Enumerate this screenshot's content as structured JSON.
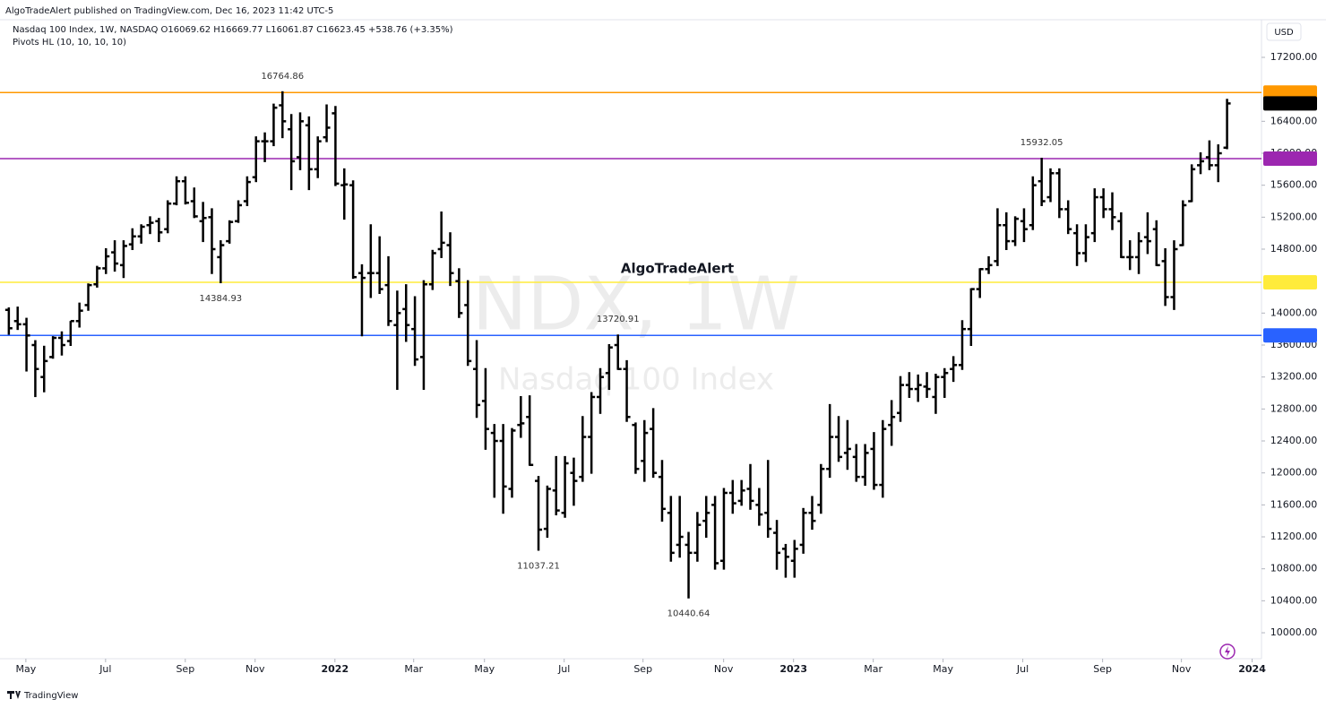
{
  "chart_data": {
    "type": "ohlc",
    "publisher": "AlgoTradeAlert published on TradingView.com, Dec 16, 2023 11:42 UTC-5",
    "legend": "Nasdaq 100 Index, 1W, NASDAQ  O16069.62  H16669.77  L16061.87  C16623.45  +538.76 (+3.35%)",
    "indicator": "Pivots HL (10, 10, 10, 10)",
    "currency": "USD",
    "watermark": "NDX, 1W",
    "watermark_name": "Nasdaq 100 Index",
    "annotation": "AlgoTradeAlert",
    "brand": "TradingView",
    "color": "#000000",
    "ylim": [
      9675,
      17671
    ],
    "xlim": [
      -1,
      141.9
    ],
    "yticks": [
      {
        "value": 17200,
        "label": "17200.00"
      },
      {
        "value": 16400,
        "label": "16400.00"
      },
      {
        "value": 16000,
        "label": "16000.00"
      },
      {
        "value": 15600,
        "label": "15600.00"
      },
      {
        "value": 15200,
        "label": "15200.00"
      },
      {
        "value": 14800,
        "label": "14800.00"
      },
      {
        "value": 14000,
        "label": "14000.00"
      },
      {
        "value": 13600,
        "label": "13600.00"
      },
      {
        "value": 13200,
        "label": "13200.00"
      },
      {
        "value": 12800,
        "label": "12800.00"
      },
      {
        "value": 12400,
        "label": "12400.00"
      },
      {
        "value": 12000,
        "label": "12000.00"
      },
      {
        "value": 11600,
        "label": "11600.00"
      },
      {
        "value": 11200,
        "label": "11200.00"
      },
      {
        "value": 10800,
        "label": "10800.00"
      },
      {
        "value": 10400,
        "label": "10400.00"
      },
      {
        "value": 10000,
        "label": "10000.00"
      }
    ],
    "xticks": [
      {
        "value": 1.93,
        "label": "May"
      },
      {
        "value": 10.96,
        "label": "Jul"
      },
      {
        "value": 19.99,
        "label": "Sep"
      },
      {
        "value": 27.9,
        "label": "Nov"
      },
      {
        "value": 36.94,
        "label": "2022"
      },
      {
        "value": 45.86,
        "label": "Mar"
      },
      {
        "value": 53.88,
        "label": "May"
      },
      {
        "value": 62.91,
        "label": "Jul"
      },
      {
        "value": 71.84,
        "label": "Sep"
      },
      {
        "value": 80.97,
        "label": "Nov"
      },
      {
        "value": 88.89,
        "label": "2023"
      },
      {
        "value": 97.92,
        "label": "Mar"
      },
      {
        "value": 105.83,
        "label": "May"
      },
      {
        "value": 114.86,
        "label": "Jul"
      },
      {
        "value": 123.9,
        "label": "Sep"
      },
      {
        "value": 132.83,
        "label": "Nov"
      },
      {
        "value": 140.84,
        "label": "2024"
      }
    ],
    "levels": [
      {
        "value": 16760.33,
        "color": "#ff9800",
        "label_color": "#000000"
      },
      {
        "value": 15932.05,
        "color": "#9c27b0",
        "label_color": "#ffffff"
      },
      {
        "value": 14384.93,
        "color": "#ffeb3b",
        "label_color": "#000000"
      },
      {
        "value": 13720.91,
        "color": "#2962ff",
        "label_color": "#ffffff"
      }
    ],
    "pivot_labels": [
      16764.86,
      14384.93,
      13720.91,
      11037.21,
      10440.64,
      15932.05
    ],
    "ohlc": [
      [
        14040,
        14060,
        13740,
        13810
      ],
      [
        13900,
        14070,
        13800,
        13860
      ],
      [
        13860,
        13930,
        13280,
        13720
      ],
      [
        13600,
        13650,
        12960,
        13300
      ],
      [
        13200,
        13580,
        13020,
        13400
      ],
      [
        13450,
        13700,
        13440,
        13690
      ],
      [
        13690,
        13760,
        13480,
        13600
      ],
      [
        13650,
        13890,
        13600,
        13900
      ],
      [
        13900,
        14120,
        13830,
        14030
      ],
      [
        14100,
        14360,
        14040,
        14350
      ],
      [
        14360,
        14580,
        14330,
        14560
      ],
      [
        14560,
        14800,
        14500,
        14710
      ],
      [
        14760,
        14900,
        14530,
        14620
      ],
      [
        14600,
        14900,
        14450,
        14840
      ],
      [
        14860,
        15050,
        14800,
        14960
      ],
      [
        14960,
        15100,
        14880,
        15080
      ],
      [
        15100,
        15200,
        15000,
        15130
      ],
      [
        15150,
        15180,
        14900,
        15010
      ],
      [
        15050,
        15400,
        15010,
        15370
      ],
      [
        15370,
        15700,
        15360,
        15650
      ],
      [
        15650,
        15700,
        15370,
        15380
      ],
      [
        15400,
        15560,
        15200,
        15210
      ],
      [
        15150,
        15380,
        14900,
        15190
      ],
      [
        15200,
        15300,
        14500,
        14800
      ],
      [
        14700,
        14900,
        14384.93,
        14850
      ],
      [
        14900,
        15150,
        14880,
        15140
      ],
      [
        15150,
        15400,
        15140,
        15350
      ],
      [
        15400,
        15700,
        15350,
        15640
      ],
      [
        15700,
        16200,
        15650,
        16150
      ],
      [
        16150,
        16250,
        15900,
        16150
      ],
      [
        16150,
        16610,
        16100,
        16570
      ],
      [
        16600,
        16764.86,
        16200,
        16400
      ],
      [
        16300,
        16480,
        15550,
        15900
      ],
      [
        15950,
        16500,
        15800,
        16400
      ],
      [
        16350,
        16450,
        15550,
        15800
      ],
      [
        15800,
        16200,
        15700,
        16150
      ],
      [
        16200,
        16600,
        16150,
        16320
      ],
      [
        16500,
        16580,
        15600,
        15620
      ],
      [
        15600,
        15800,
        15180,
        15610
      ],
      [
        15600,
        15650,
        14440,
        14450
      ],
      [
        14500,
        14600,
        13720,
        14440
      ],
      [
        14500,
        15100,
        14200,
        14500
      ],
      [
        14500,
        14950,
        14250,
        14300
      ],
      [
        14350,
        14700,
        13850,
        13900
      ],
      [
        13850,
        14270,
        13050,
        14000
      ],
      [
        14050,
        14350,
        13650,
        13850
      ],
      [
        13800,
        14200,
        13350,
        13420
      ],
      [
        13450,
        14400,
        13050,
        14360
      ],
      [
        14360,
        14780,
        14300,
        14750
      ],
      [
        14800,
        15260,
        14700,
        14880
      ],
      [
        14850,
        15000,
        14350,
        14500
      ],
      [
        14400,
        14550,
        13950,
        14000
      ],
      [
        14100,
        14400,
        13350,
        13400
      ],
      [
        13300,
        13650,
        12700,
        12850
      ],
      [
        12900,
        13300,
        12300,
        12550
      ],
      [
        12500,
        12600,
        11700,
        12400
      ],
      [
        12400,
        12600,
        11500,
        11830
      ],
      [
        11800,
        12550,
        11700,
        12530
      ],
      [
        12600,
        12950,
        12450,
        12620
      ],
      [
        12700,
        12960,
        12100,
        12100
      ],
      [
        11900,
        11950,
        11037.21,
        11290
      ],
      [
        11300,
        11830,
        11200,
        11800
      ],
      [
        11780,
        12200,
        11480,
        11530
      ],
      [
        11500,
        12200,
        11450,
        12120
      ],
      [
        12000,
        12180,
        11600,
        11900
      ],
      [
        11950,
        12700,
        11900,
        12450
      ],
      [
        12450,
        13000,
        12000,
        12950
      ],
      [
        12950,
        13300,
        12750,
        13200
      ],
      [
        13250,
        13600,
        13050,
        13570
      ],
      [
        13600,
        13720.91,
        13300,
        13300
      ],
      [
        13300,
        13400,
        12650,
        12700
      ],
      [
        12600,
        12620,
        12000,
        12050
      ],
      [
        12150,
        12650,
        11900,
        12500
      ],
      [
        12550,
        12800,
        11950,
        12000
      ],
      [
        11950,
        12150,
        11400,
        11550
      ],
      [
        11500,
        11700,
        10900,
        11000
      ],
      [
        11100,
        11700,
        10950,
        11200
      ],
      [
        11100,
        11250,
        10440.64,
        11000
      ],
      [
        11000,
        11500,
        10900,
        11350
      ],
      [
        11400,
        11700,
        11200,
        11500
      ],
      [
        11600,
        11700,
        10800,
        10870
      ],
      [
        10900,
        11800,
        10800,
        11750
      ],
      [
        11750,
        11900,
        11500,
        11620
      ],
      [
        11650,
        11900,
        11600,
        11780
      ],
      [
        11800,
        12100,
        11550,
        11650
      ],
      [
        11600,
        11800,
        11350,
        11480
      ],
      [
        11500,
        12150,
        11200,
        11300
      ],
      [
        11250,
        11400,
        10800,
        11000
      ],
      [
        11050,
        11100,
        10700,
        10950
      ],
      [
        10900,
        11150,
        10700,
        11050
      ],
      [
        11100,
        11550,
        11000,
        11500
      ],
      [
        11500,
        11700,
        11300,
        11400
      ],
      [
        11600,
        12100,
        11500,
        12050
      ],
      [
        12050,
        12850,
        11950,
        12450
      ],
      [
        12450,
        12700,
        12150,
        12200
      ],
      [
        12250,
        12650,
        12050,
        12300
      ],
      [
        12200,
        12350,
        11900,
        11950
      ],
      [
        11950,
        12350,
        11850,
        12250
      ],
      [
        12300,
        12500,
        11800,
        11850
      ],
      [
        11850,
        12650,
        11700,
        12550
      ],
      [
        12600,
        12900,
        12350,
        12700
      ],
      [
        12750,
        13200,
        12650,
        13100
      ],
      [
        13100,
        13250,
        12950,
        13050
      ],
      [
        13050,
        13220,
        12900,
        13100
      ],
      [
        13080,
        13250,
        12950,
        13050
      ],
      [
        12950,
        13230,
        12750,
        13200
      ],
      [
        13200,
        13300,
        12950,
        13250
      ],
      [
        13300,
        13450,
        13150,
        13350
      ],
      [
        13350,
        13900,
        13300,
        13800
      ],
      [
        13800,
        14300,
        13600,
        14300
      ],
      [
        14300,
        14550,
        14200,
        14550
      ],
      [
        14550,
        14700,
        14500,
        14600
      ],
      [
        14650,
        15300,
        14600,
        15100
      ],
      [
        15100,
        15250,
        14800,
        14900
      ],
      [
        14900,
        15200,
        14850,
        15180
      ],
      [
        15150,
        15300,
        14900,
        15050
      ],
      [
        15100,
        15700,
        15050,
        15600
      ],
      [
        15650,
        15932.05,
        15350,
        15400
      ],
      [
        15450,
        15800,
        15400,
        15750
      ],
      [
        15750,
        15800,
        15200,
        15300
      ],
      [
        15300,
        15400,
        15000,
        15050
      ],
      [
        15000,
        15100,
        14600,
        14750
      ],
      [
        14750,
        15100,
        14650,
        14950
      ],
      [
        15000,
        15550,
        14900,
        15450
      ],
      [
        15450,
        15550,
        15200,
        15300
      ],
      [
        15300,
        15500,
        15050,
        15200
      ],
      [
        15150,
        15250,
        14700,
        14700
      ],
      [
        14700,
        14900,
        14550,
        14700
      ],
      [
        14700,
        15000,
        14500,
        14900
      ],
      [
        14950,
        15250,
        14750,
        14900
      ],
      [
        15050,
        15150,
        14600,
        14600
      ],
      [
        14650,
        14800,
        14100,
        14200
      ],
      [
        14200,
        14900,
        14050,
        14800
      ],
      [
        14850,
        15400,
        14850,
        15350
      ],
      [
        15400,
        15850,
        15400,
        15800
      ],
      [
        15850,
        16000,
        15750,
        15900
      ],
      [
        15950,
        16150,
        15800,
        15850
      ],
      [
        15850,
        16100,
        15650,
        16000
      ],
      [
        16069.62,
        16669.77,
        16061.87,
        16623.45
      ]
    ]
  }
}
